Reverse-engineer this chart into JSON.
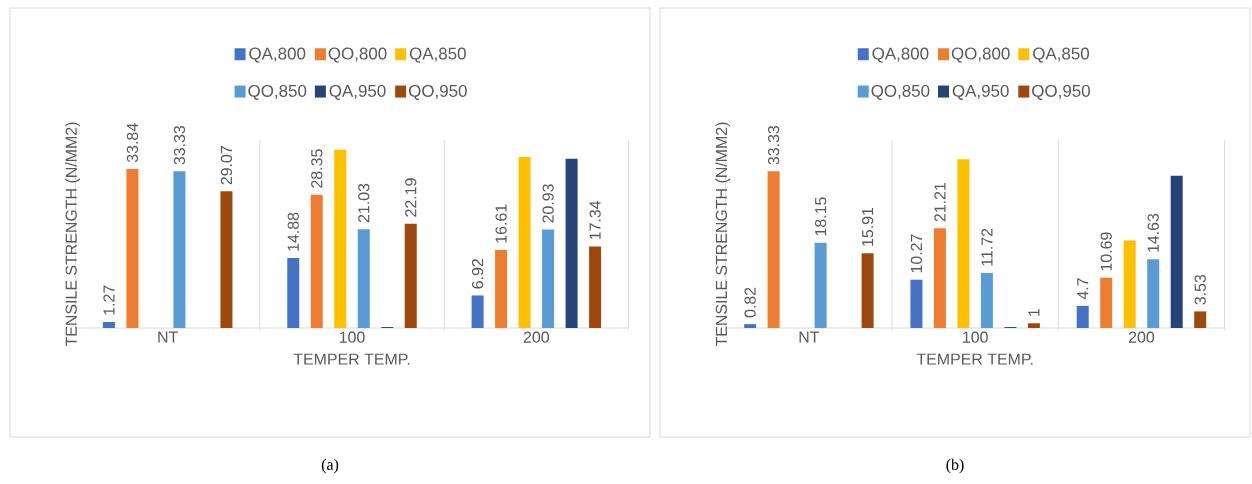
{
  "chart_data": [
    {
      "type": "bar",
      "ylabel": "TENSILE STRENGTH (N/MM2)",
      "xlabel": "TEMPER TEMP.",
      "categories": [
        "NT",
        "100",
        "200"
      ],
      "ylim": [
        0,
        40
      ],
      "tick_labels": "x",
      "grid": "x",
      "legend": "top",
      "annotations": [
        "(a)"
      ],
      "series": [
        {
          "name": "QA,800",
          "color": "#4472c4",
          "values": [
            1.27,
            14.88,
            6.92
          ],
          "value_labels": [
            "1.27",
            "14.88",
            "6.92"
          ]
        },
        {
          "name": "QO,800",
          "color": "#ed7d31",
          "values": [
            33.84,
            28.35,
            16.61
          ],
          "value_labels": [
            "33.84",
            "28.35",
            "16.61"
          ]
        },
        {
          "name": "QA,850",
          "color": "#ffc000",
          "values": [
            null,
            37.9,
            36.4
          ]
        },
        {
          "name": "QO,850",
          "color": "#5b9bd5",
          "values": [
            33.33,
            21.03,
            20.93
          ],
          "value_labels": [
            "33.33",
            "21.03",
            "20.93"
          ]
        },
        {
          "name": "QA,950",
          "color": "#264478",
          "values": [
            null,
            0.2,
            36.0
          ]
        },
        {
          "name": "QO,950",
          "color": "#9e480e",
          "values": [
            29.07,
            22.19,
            17.34
          ],
          "value_labels": [
            "29.07",
            "22.19",
            "17.34"
          ]
        }
      ]
    },
    {
      "type": "bar",
      "ylabel": "TENSILE STRENGTH (N/MM2)",
      "xlabel": "TEMPER TEMP.",
      "categories": [
        "NT",
        "100",
        "200"
      ],
      "ylim": [
        0,
        40
      ],
      "tick_labels": "x",
      "grid": "x",
      "legend": "top",
      "annotations": [
        "(b)"
      ],
      "series": [
        {
          "name": "QA,800",
          "color": "#4472c4",
          "values": [
            0.82,
            10.27,
            4.7
          ],
          "value_labels": [
            "0.82",
            "10.27",
            "4.7"
          ]
        },
        {
          "name": "QO,800",
          "color": "#ed7d31",
          "values": [
            33.33,
            21.21,
            10.69
          ],
          "value_labels": [
            "33.33",
            "21.21",
            "10.69"
          ]
        },
        {
          "name": "QA,850",
          "color": "#ffc000",
          "values": [
            null,
            35.9,
            18.6
          ]
        },
        {
          "name": "QO,850",
          "color": "#5b9bd5",
          "values": [
            18.15,
            11.72,
            14.63
          ],
          "value_labels": [
            "18.15",
            "11.72",
            "14.63"
          ]
        },
        {
          "name": "QA,950",
          "color": "#264478",
          "values": [
            null,
            0.2,
            32.4
          ]
        },
        {
          "name": "QO,950",
          "color": "#9e480e",
          "values": [
            15.91,
            1,
            3.53
          ],
          "value_labels": [
            "15.91",
            "1",
            "3.53"
          ]
        }
      ]
    }
  ]
}
